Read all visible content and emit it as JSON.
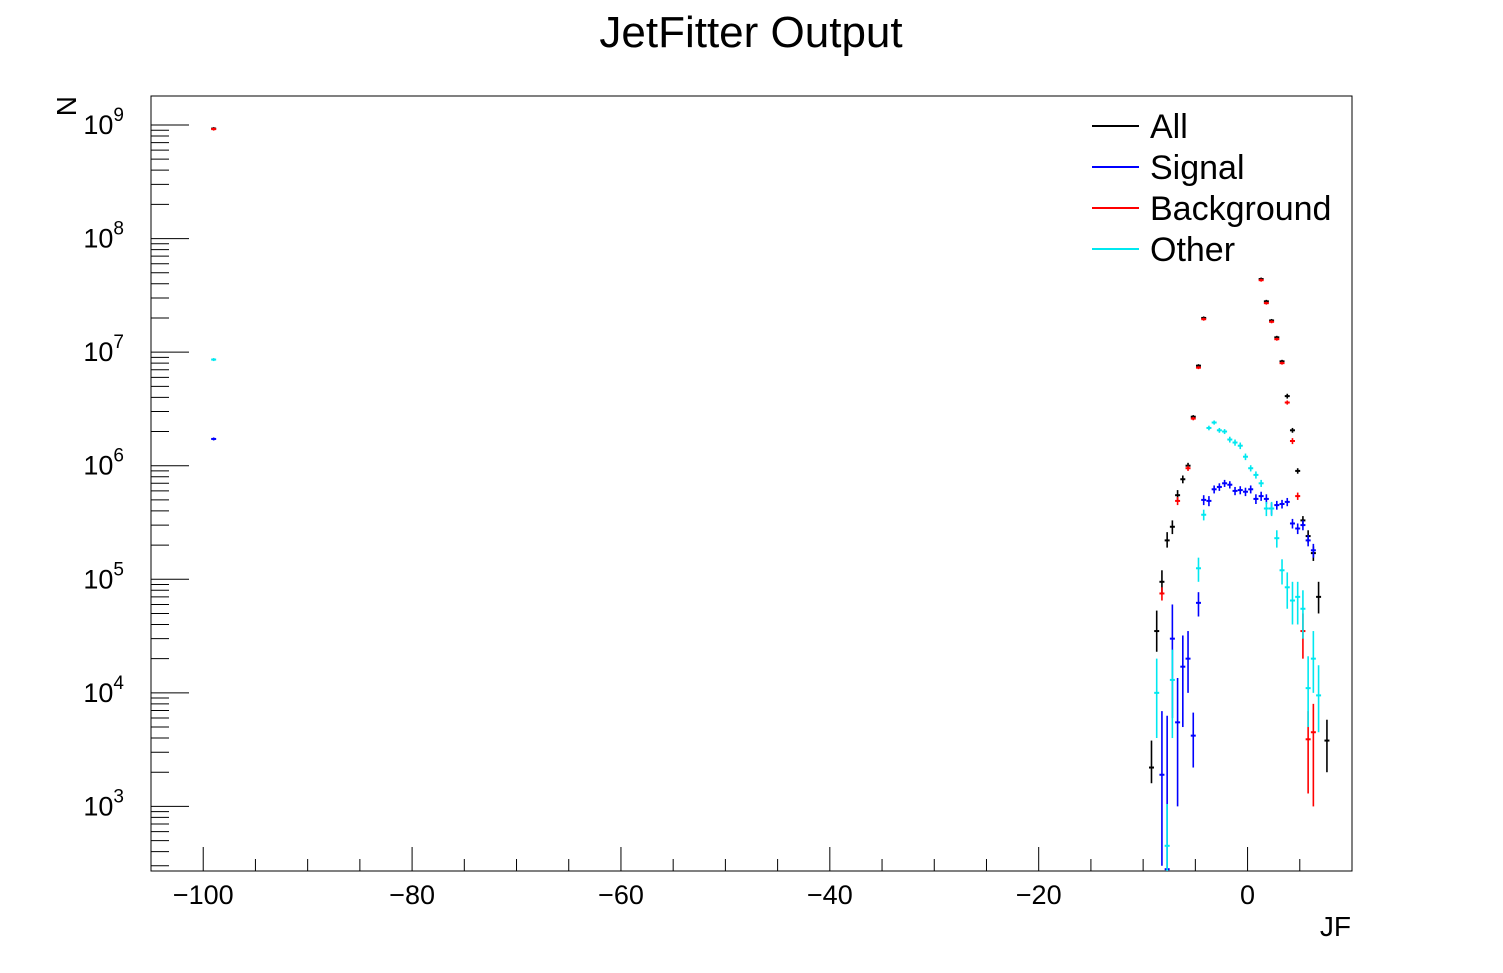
{
  "chart_data": {
    "type": "scatter",
    "title": "JetFitter Output",
    "xlabel": "JF",
    "ylabel": "N",
    "xlim": [
      -105,
      10
    ],
    "ylim": [
      270,
      1800000000.0
    ],
    "yscale": "log",
    "grid": false,
    "legend_position": "top-right",
    "x_ticks": [
      {
        "value": -100,
        "label": "−100"
      },
      {
        "value": -80,
        "label": "−80"
      },
      {
        "value": -60,
        "label": "−60"
      },
      {
        "value": -40,
        "label": "−40"
      },
      {
        "value": -20,
        "label": "−20"
      },
      {
        "value": 0,
        "label": "0"
      }
    ],
    "y_ticks": [
      {
        "value": 1000,
        "base": "10",
        "exp": "3"
      },
      {
        "value": 10000,
        "base": "10",
        "exp": "4"
      },
      {
        "value": 100000,
        "base": "10",
        "exp": "5"
      },
      {
        "value": 1000000,
        "base": "10",
        "exp": "6"
      },
      {
        "value": 10000000,
        "base": "10",
        "exp": "7"
      },
      {
        "value": 100000000,
        "base": "10",
        "exp": "8"
      },
      {
        "value": 1000000000,
        "base": "10",
        "exp": "9"
      }
    ],
    "series": [
      {
        "name": "All",
        "color": "#000000",
        "points": [
          [
            -99,
            930000000.0,
            0,
            0
          ],
          [
            -9.2,
            2200,
            600,
            1600
          ],
          [
            -8.7,
            35000,
            12000,
            18000
          ],
          [
            -8.2,
            95000,
            20000,
            25000
          ],
          [
            -7.7,
            220000,
            30000,
            40000
          ],
          [
            -7.2,
            290000,
            40000,
            40000
          ],
          [
            -6.7,
            550000,
            60000,
            60000
          ],
          [
            -6.2,
            760000,
            60000,
            60000
          ],
          [
            -5.7,
            1000000.0,
            60000,
            60000
          ],
          [
            -5.2,
            2700000.0,
            90000,
            90000
          ],
          [
            -4.7,
            7600000.0,
            0,
            0
          ],
          [
            -4.2,
            20000000.0,
            0,
            0
          ],
          [
            1.3,
            44000000.0,
            0,
            0
          ],
          [
            1.8,
            28000000.0,
            0,
            0
          ],
          [
            2.3,
            19000000.0,
            0,
            0
          ],
          [
            2.8,
            13500000.0,
            0,
            0
          ],
          [
            3.3,
            8300000.0,
            0,
            0
          ],
          [
            3.8,
            4100000.0,
            200000,
            200000
          ],
          [
            4.3,
            2050000.0,
            100000,
            100000
          ],
          [
            4.8,
            900000,
            50000,
            50000
          ],
          [
            5.3,
            330000,
            30000,
            30000
          ],
          [
            5.8,
            240000,
            30000,
            30000
          ],
          [
            6.3,
            170000,
            25000,
            25000
          ],
          [
            6.8,
            70000,
            20000,
            25000
          ],
          [
            7.6,
            3800,
            1800,
            2000
          ]
        ]
      },
      {
        "name": "Signal",
        "color": "#0000ff",
        "points": [
          [
            -99,
            1720000.0,
            0,
            0
          ],
          [
            -8.2,
            1900,
            1600,
            5000
          ],
          [
            -7.7,
            280,
            0,
            6000
          ],
          [
            -7.2,
            30000,
            24000,
            30000
          ],
          [
            -6.7,
            5500,
            4500,
            8000
          ],
          [
            -6.2,
            17000,
            12000,
            15000
          ],
          [
            -5.7,
            20000,
            10000,
            15000
          ],
          [
            -5.2,
            4200,
            2000,
            2500
          ],
          [
            -4.7,
            62000,
            15000,
            15000
          ],
          [
            -4.2,
            500000,
            50000,
            50000
          ],
          [
            -3.7,
            490000,
            50000,
            50000
          ],
          [
            -3.2,
            620000,
            50000,
            50000
          ],
          [
            -2.7,
            650000,
            50000,
            50000
          ],
          [
            -2.2,
            700000,
            50000,
            50000
          ],
          [
            -1.7,
            680000,
            50000,
            50000
          ],
          [
            -1.2,
            600000,
            50000,
            50000
          ],
          [
            -0.7,
            610000,
            50000,
            50000
          ],
          [
            -0.2,
            590000,
            50000,
            50000
          ],
          [
            0.3,
            620000,
            50000,
            50000
          ],
          [
            0.8,
            510000,
            50000,
            50000
          ],
          [
            1.3,
            540000,
            50000,
            50000
          ],
          [
            1.8,
            510000,
            50000,
            50000
          ],
          [
            2.3,
            420000,
            50000,
            50000
          ],
          [
            2.8,
            450000,
            40000,
            40000
          ],
          [
            3.3,
            460000,
            40000,
            40000
          ],
          [
            3.8,
            480000,
            40000,
            40000
          ],
          [
            4.3,
            310000,
            30000,
            30000
          ],
          [
            4.8,
            280000,
            30000,
            30000
          ],
          [
            5.3,
            300000,
            30000,
            30000
          ],
          [
            5.8,
            220000,
            25000,
            25000
          ],
          [
            6.3,
            180000,
            25000,
            25000
          ]
        ]
      },
      {
        "name": "Background",
        "color": "#ff0000",
        "points": [
          [
            -99,
            920000000.0,
            0,
            0
          ],
          [
            -8.2,
            75000,
            10000,
            10000
          ],
          [
            -6.7,
            490000,
            40000,
            40000
          ],
          [
            -5.7,
            950000,
            50000,
            50000
          ],
          [
            -5.2,
            2600000.0,
            90000,
            90000
          ],
          [
            -4.7,
            7300000.0,
            0,
            0
          ],
          [
            -4.2,
            19500000.0,
            0,
            0
          ],
          [
            1.3,
            43000000.0,
            0,
            0
          ],
          [
            1.8,
            27000000.0,
            0,
            0
          ],
          [
            2.3,
            18500000.0,
            0,
            0
          ],
          [
            2.8,
            13000000.0,
            0,
            0
          ],
          [
            3.3,
            8000000.0,
            0,
            0
          ],
          [
            3.8,
            3600000.0,
            150000,
            150000
          ],
          [
            4.3,
            1650000.0,
            100000,
            100000
          ],
          [
            4.8,
            540000,
            40000,
            40000
          ],
          [
            5.3,
            35000,
            15000,
            15000
          ],
          [
            5.8,
            3900,
            2600,
            3000
          ],
          [
            6.3,
            4500,
            3500,
            3500
          ]
        ]
      },
      {
        "name": "Other",
        "color": "#00e8f0",
        "points": [
          [
            -99,
            8600000.0,
            0,
            0
          ],
          [
            -8.7,
            10000,
            6000,
            10000
          ],
          [
            -7.7,
            450,
            300,
            600
          ],
          [
            -7.2,
            13000,
            9000,
            11000
          ],
          [
            -4.7,
            125000,
            30000,
            30000
          ],
          [
            -4.2,
            370000,
            40000,
            40000
          ],
          [
            -3.7,
            2150000.0,
            100000,
            100000
          ],
          [
            -3.2,
            2400000.0,
            100000,
            100000
          ],
          [
            -2.7,
            2050000.0,
            100000,
            100000
          ],
          [
            -2.2,
            2000000.0,
            100000,
            100000
          ],
          [
            -1.7,
            1700000.0,
            100000,
            100000
          ],
          [
            -1.2,
            1600000.0,
            100000,
            100000
          ],
          [
            -0.7,
            1500000.0,
            100000,
            100000
          ],
          [
            -0.2,
            1200000.0,
            80000,
            80000
          ],
          [
            0.3,
            950000,
            60000,
            60000
          ],
          [
            0.8,
            830000,
            60000,
            60000
          ],
          [
            1.3,
            700000,
            50000,
            50000
          ],
          [
            1.8,
            420000,
            60000,
            60000
          ],
          [
            2.3,
            420000,
            60000,
            60000
          ],
          [
            2.8,
            230000,
            40000,
            40000
          ],
          [
            3.3,
            120000,
            30000,
            30000
          ],
          [
            3.8,
            85000,
            30000,
            30000
          ],
          [
            4.3,
            65000,
            25000,
            30000
          ],
          [
            4.8,
            70000,
            30000,
            25000
          ],
          [
            5.3,
            55000,
            25000,
            25000
          ],
          [
            5.8,
            11000,
            6000,
            10000
          ],
          [
            6.3,
            20000,
            10000,
            15000
          ],
          [
            6.8,
            9500,
            5000,
            8000
          ]
        ]
      }
    ]
  }
}
